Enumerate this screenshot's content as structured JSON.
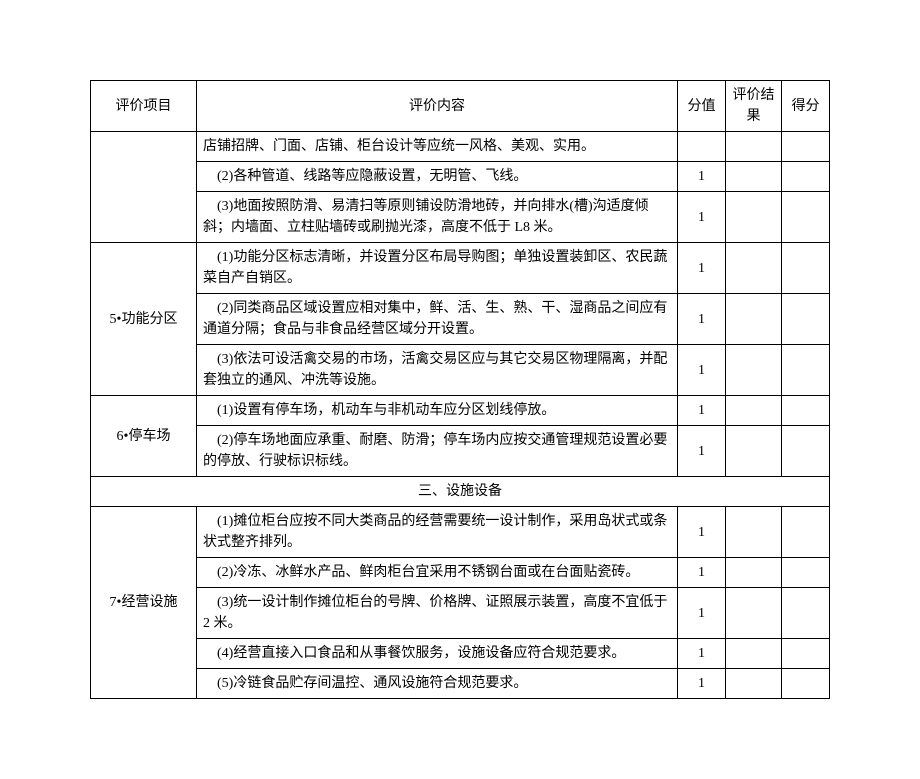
{
  "headers": {
    "item": "评价项目",
    "content": "评价内容",
    "score": "分值",
    "result": "评价结果",
    "final": "得分"
  },
  "rows": [
    {
      "item": "",
      "contents": [
        {
          "text": "店铺招牌、门面、店铺、柜台设计等应统一风格、美观、实用。",
          "score": ""
        },
        {
          "text": "(2)各种管道、线路等应隐蔽设置，无明管、飞线。",
          "score": "1"
        },
        {
          "text": "(3)地面按照防滑、易清扫等原则铺设防滑地砖，并向排水(槽)沟适度倾斜；内墙面、立柱贴墙砖或刷抛光漆，高度不低于 L8 米。",
          "score": "1"
        }
      ]
    },
    {
      "item": "5•功能分区",
      "contents": [
        {
          "text": "(1)功能分区标志清晰，并设置分区布局导购图；单独设置装卸区、农民蔬菜自产自销区。",
          "score": "1"
        },
        {
          "text": "(2)同类商品区域设置应相对集中，鲜、活、生、熟、干、湿商品之间应有通道分隔；食品与非食品经营区域分开设置。",
          "score": "1"
        },
        {
          "text": "(3)依法可设活禽交易的市场，活禽交易区应与其它交易区物理隔离，并配套独立的通风、冲洗等设施。",
          "score": "1"
        }
      ]
    },
    {
      "item": "6•停车场",
      "contents": [
        {
          "text": "(1)设置有停车场，机动车与非机动车应分区划线停放。",
          "score": "1"
        },
        {
          "text": "(2)停车场地面应承重、耐磨、防滑；停车场内应按交通管理规范设置必要的停放、行驶标识标线。",
          "score": "1"
        }
      ]
    }
  ],
  "sectionHeader": "三、设施设备",
  "rows2": [
    {
      "item": "7•经营设施",
      "contents": [
        {
          "text": "(1)摊位柜台应按不同大类商品的经营需要统一设计制作，采用岛状式或条状式整齐排列。",
          "score": "1"
        },
        {
          "text": "(2)冷冻、冰鲜水产品、鲜肉柜台宜采用不锈钢台面或在台面贴瓷砖。",
          "score": "1"
        },
        {
          "text": "(3)统一设计制作摊位柜台的号牌、价格牌、证照展示装置，高度不宜低于 2 米。",
          "score": "1"
        },
        {
          "text": "(4)经营直接入口食品和从事餐饮服务，设施设备应符合规范要求。",
          "score": "1"
        },
        {
          "text": "(5)冷链食品贮存间温控、通风设施符合规范要求。",
          "score": "1"
        }
      ]
    }
  ]
}
